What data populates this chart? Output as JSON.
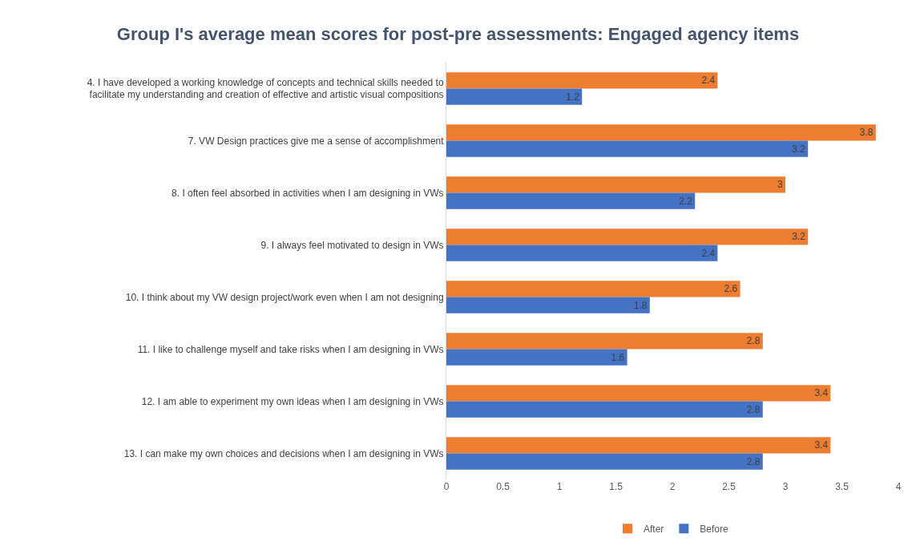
{
  "chart_data": {
    "type": "bar",
    "orientation": "horizontal",
    "title": "Group I's average mean scores for post-pre assessments: Engaged agency items",
    "categories": [
      "4. I have developed a working knowledge of concepts and technical skills needed to facilitate my understanding and creation of effective and artistic visual compositions",
      "7. VW Design practices give me a sense of accomplishment",
      "8. I often feel absorbed in activities when I am designing in VWs",
      "9. I always feel motivated to design in VWs",
      "10. I think about my VW design project/work even when I am not designing",
      "11. I like to challenge myself and take risks when I am designing in VWs",
      "12. I am able to experiment my own ideas when I am designing in VWs",
      "13. I can make my own choices and decisions when I am designing in VWs"
    ],
    "series": [
      {
        "name": "After",
        "color": "#ed7d31",
        "values": [
          2.4,
          3.8,
          3,
          3.2,
          2.6,
          2.8,
          3.4,
          3.4
        ]
      },
      {
        "name": "Before",
        "color": "#4472c4",
        "values": [
          1.2,
          3.2,
          2.2,
          2.4,
          1.8,
          1.6,
          2.8,
          2.8
        ]
      }
    ],
    "xlim": [
      0,
      4
    ],
    "xticks": [
      0,
      0.5,
      1,
      1.5,
      2,
      2.5,
      3,
      3.5,
      4
    ],
    "data_labels": true,
    "grid": false,
    "legend": "bottom"
  }
}
